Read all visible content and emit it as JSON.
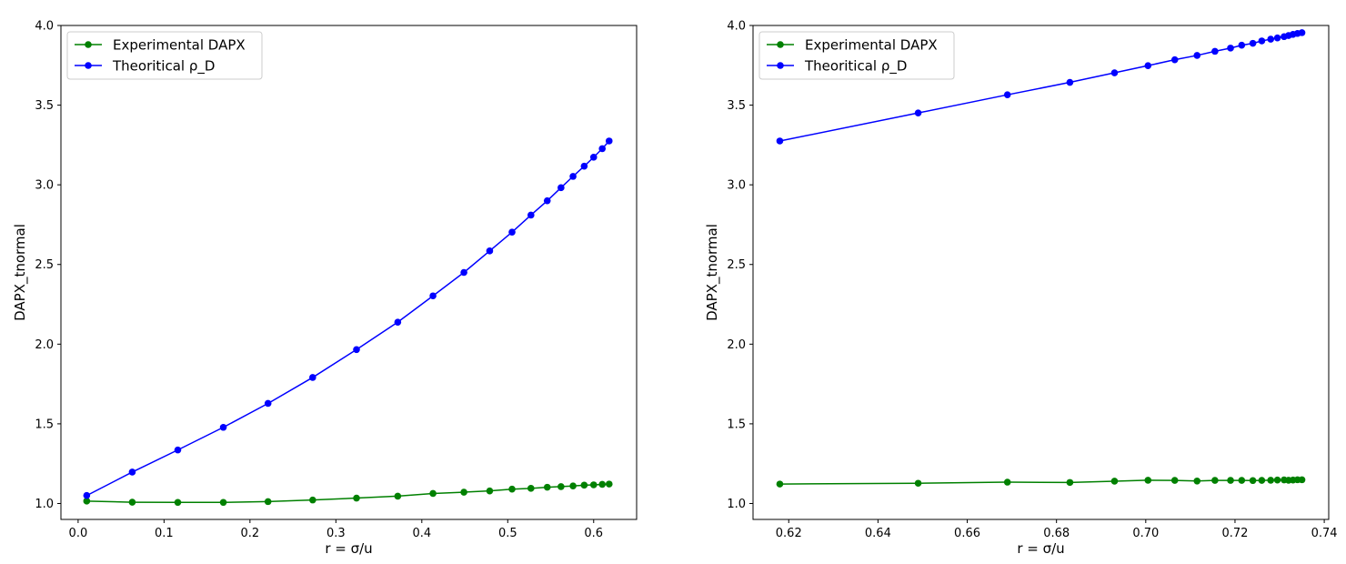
{
  "chart_data": [
    {
      "type": "line",
      "xlabel": "r = σ/u",
      "ylabel": "DAPX_tnormal",
      "xlim": [
        -0.02,
        0.65
      ],
      "ylim": [
        0.9,
        4.0
      ],
      "xticks": [
        "0.0",
        "0.1",
        "0.2",
        "0.3",
        "0.4",
        "0.5",
        "0.6"
      ],
      "xtick_values": [
        0.0,
        0.1,
        0.2,
        0.3,
        0.4,
        0.5,
        0.6
      ],
      "yticks": [
        "1.0",
        "1.5",
        "2.0",
        "2.5",
        "3.0",
        "3.5",
        "4.0"
      ],
      "ytick_values": [
        1.0,
        1.5,
        2.0,
        2.5,
        3.0,
        3.5,
        4.0
      ],
      "grid": false,
      "legend_position": "top-left",
      "series": [
        {
          "name": "Experimental DAPX",
          "color": "#008000",
          "x": [
            0.01,
            0.063,
            0.116,
            0.169,
            0.221,
            0.273,
            0.324,
            0.372,
            0.413,
            0.449,
            0.479,
            0.505,
            0.527,
            0.546,
            0.562,
            0.576,
            0.589,
            0.6,
            0.61,
            0.618
          ],
          "y": [
            1.015,
            1.008,
            1.007,
            1.007,
            1.012,
            1.022,
            1.034,
            1.046,
            1.063,
            1.071,
            1.079,
            1.09,
            1.095,
            1.102,
            1.106,
            1.11,
            1.115,
            1.117,
            1.12,
            1.122
          ]
        },
        {
          "name": "Theoritical ρ_D",
          "color": "#0000ff",
          "x": [
            0.01,
            0.063,
            0.116,
            0.169,
            0.221,
            0.273,
            0.324,
            0.372,
            0.413,
            0.449,
            0.479,
            0.505,
            0.527,
            0.546,
            0.562,
            0.576,
            0.589,
            0.6,
            0.61,
            0.618
          ],
          "y": [
            1.05,
            1.197,
            1.336,
            1.478,
            1.628,
            1.791,
            1.966,
            2.138,
            2.303,
            2.45,
            2.585,
            2.703,
            2.81,
            2.9,
            2.982,
            3.053,
            3.117,
            3.173,
            3.227,
            3.275
          ]
        }
      ]
    },
    {
      "type": "line",
      "xlabel": "r = σ/u",
      "ylabel": "DAPX_tnormal",
      "xlim": [
        0.612,
        0.741
      ],
      "ylim": [
        0.9,
        4.0
      ],
      "xticks": [
        "0.62",
        "0.64",
        "0.66",
        "0.68",
        "0.70",
        "0.72",
        "0.74"
      ],
      "xtick_values": [
        0.62,
        0.64,
        0.66,
        0.68,
        0.7,
        0.72,
        0.74
      ],
      "yticks": [
        "1.0",
        "1.5",
        "2.0",
        "2.5",
        "3.0",
        "3.5",
        "4.0"
      ],
      "ytick_values": [
        1.0,
        1.5,
        2.0,
        2.5,
        3.0,
        3.5,
        4.0
      ],
      "grid": false,
      "legend_position": "top-left",
      "series": [
        {
          "name": "Experimental DAPX",
          "color": "#008000",
          "x": [
            0.618,
            0.649,
            0.669,
            0.683,
            0.693,
            0.7005,
            0.7065,
            0.7115,
            0.7155,
            0.719,
            0.7215,
            0.724,
            0.726,
            0.728,
            0.7295,
            0.731,
            0.732,
            0.733,
            0.734,
            0.735
          ],
          "y": [
            1.122,
            1.127,
            1.134,
            1.132,
            1.14,
            1.146,
            1.145,
            1.141,
            1.145,
            1.145,
            1.145,
            1.144,
            1.145,
            1.146,
            1.147,
            1.148,
            1.146,
            1.147,
            1.149,
            1.149
          ]
        },
        {
          "name": "Theoritical ρ_D",
          "color": "#0000ff",
          "x": [
            0.618,
            0.649,
            0.669,
            0.683,
            0.693,
            0.7005,
            0.7065,
            0.7115,
            0.7155,
            0.719,
            0.7215,
            0.724,
            0.726,
            0.728,
            0.7295,
            0.731,
            0.732,
            0.733,
            0.734,
            0.735
          ],
          "y": [
            3.275,
            3.451,
            3.565,
            3.643,
            3.703,
            3.748,
            3.785,
            3.812,
            3.838,
            3.858,
            3.876,
            3.888,
            3.903,
            3.914,
            3.922,
            3.93,
            3.937,
            3.944,
            3.95,
            3.955
          ]
        }
      ]
    }
  ]
}
